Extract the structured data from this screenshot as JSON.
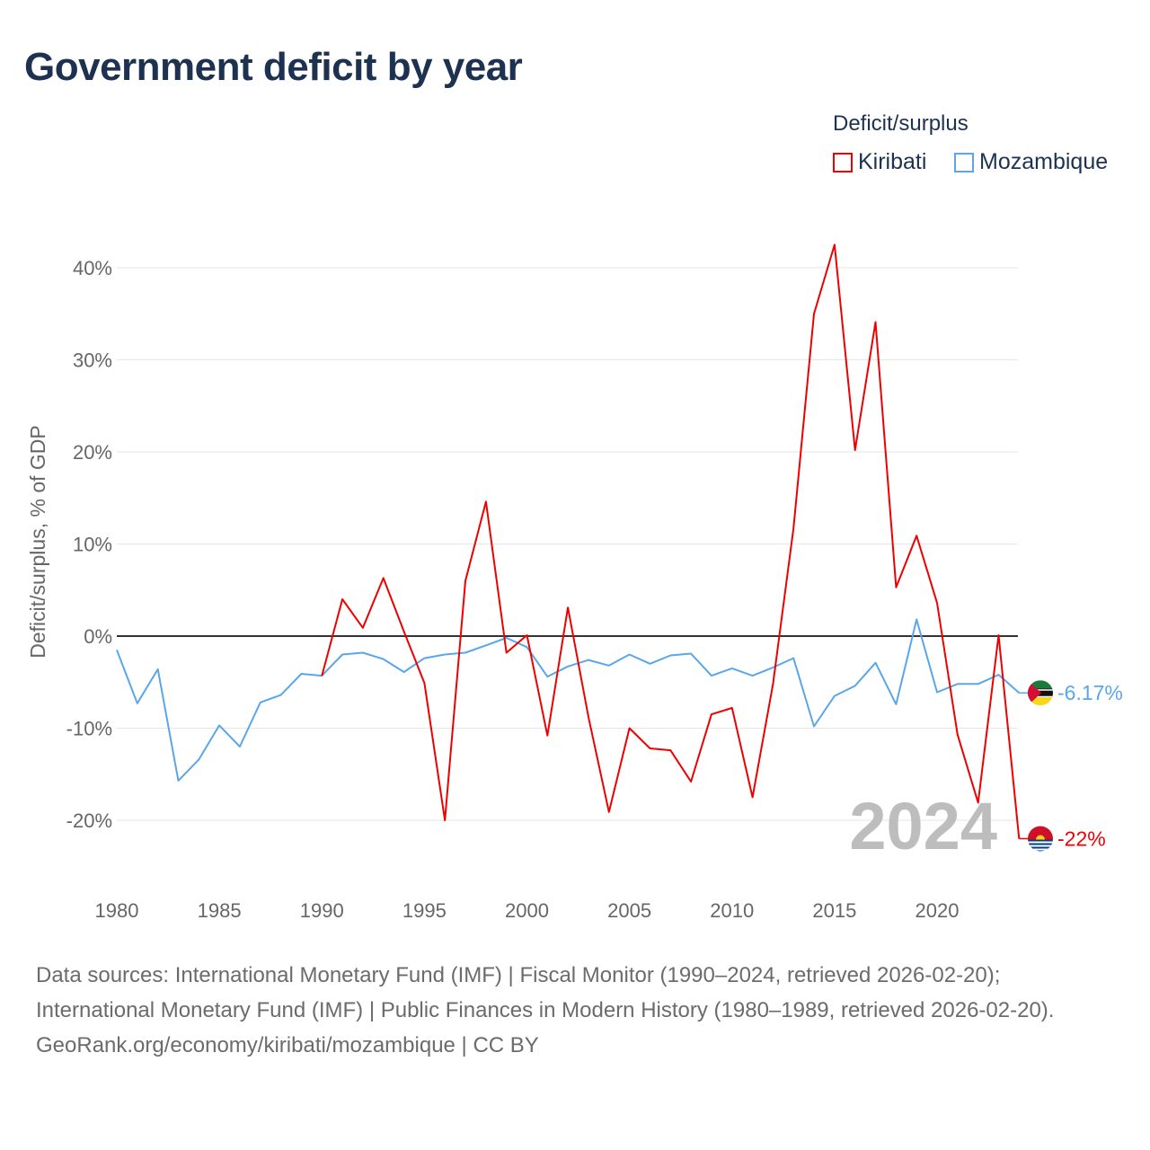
{
  "title": "Government deficit by year",
  "legend": {
    "title": "Deficit/surplus",
    "items": [
      {
        "name": "Kiribati",
        "color": "#ee0000"
      },
      {
        "name": "Mozambique",
        "color": "#5aa6ea"
      }
    ]
  },
  "year_watermark": "2024",
  "sources": {
    "line1": "Data sources: International Monetary Fund (IMF) | Fiscal Monitor (1990–2024, retrieved 2026-02-20); International Monetary Fund (IMF) | Public Finances in Modern History (1980–1989, retrieved 2026-02-20).",
    "line2": "GeoRank.org/economy/kiribati/mozambique | CC BY"
  },
  "chart_data": {
    "type": "line",
    "title": "Government deficit by year",
    "xlabel": "",
    "ylabel": "Deficit/surplus, % of GDP",
    "xlim": [
      1980,
      2024
    ],
    "ylim": [
      -25,
      43
    ],
    "x_ticks": [
      1980,
      1985,
      1990,
      1995,
      2000,
      2005,
      2010,
      2015,
      2020
    ],
    "y_ticks": [
      -20,
      -10,
      0,
      10,
      20,
      30,
      40
    ],
    "y_tick_labels": [
      "-20%",
      "-10%",
      "0%",
      "10%",
      "20%",
      "30%",
      "40%"
    ],
    "x_tick_labels": [
      "1980",
      "1985",
      "1990",
      "1995",
      "2000",
      "2005",
      "2010",
      "2015",
      "2020"
    ],
    "grid": true,
    "legend_position": "top-right",
    "series": [
      {
        "name": "Kiribati",
        "color": "#ee0000",
        "start_year": 1990,
        "end_label": "-22%",
        "values": [
          -4.3,
          4.0,
          0.9,
          6.3,
          0.5,
          -5.1,
          -20.0,
          6.0,
          14.6,
          -1.8,
          0.1,
          -10.8,
          3.1,
          -8.8,
          -19.1,
          -10.0,
          -12.2,
          -12.4,
          -15.8,
          -8.5,
          -7.8,
          -17.5,
          -5.2,
          11.7,
          35.0,
          42.5,
          20.2,
          34.1,
          5.3,
          10.9,
          3.6,
          -10.7,
          -18.1,
          0.1,
          -22.0
        ]
      },
      {
        "name": "Mozambique",
        "color": "#5aa6ea",
        "start_year": 1980,
        "end_label": "-6.17%",
        "values": [
          -1.5,
          -7.3,
          -3.6,
          -15.7,
          -13.4,
          -9.7,
          -12.0,
          -7.2,
          -6.4,
          -4.1,
          -4.3,
          -2.0,
          -1.8,
          -2.5,
          -3.9,
          -2.4,
          -2.0,
          -1.8,
          -1.0,
          -0.2,
          -1.2,
          -4.4,
          -3.3,
          -2.6,
          -3.2,
          -2.0,
          -3.0,
          -2.1,
          -1.9,
          -4.3,
          -3.5,
          -4.3,
          -3.4,
          -2.4,
          -9.8,
          -6.5,
          -5.4,
          -2.9,
          -7.4,
          1.8,
          -6.1,
          -5.2,
          -5.2,
          -4.2,
          -6.17
        ]
      }
    ]
  }
}
